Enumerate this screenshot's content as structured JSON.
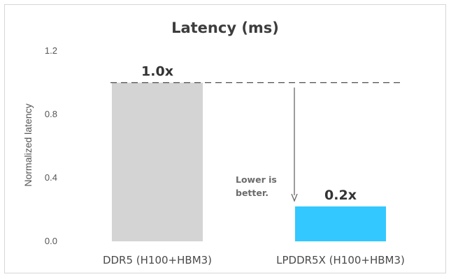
{
  "chart_data": {
    "type": "bar",
    "title": "Latency (ms)",
    "xlabel": "",
    "ylabel": "Normalized latency",
    "ylim": [
      0,
      1.2
    ],
    "yticks": [
      "0.0",
      "0.4",
      "0.8",
      "1.2"
    ],
    "ytick_values": [
      0,
      0.4,
      0.8,
      1.2
    ],
    "categories": [
      "DDR5 (H100+HBM3)",
      "LPDDR5X (H100+HBM3)"
    ],
    "values": [
      1.0,
      0.22
    ],
    "data_labels": [
      "1.0x",
      "0.2x"
    ],
    "colors": [
      "#d4d4d4",
      "#33c8ff"
    ],
    "reference_line": {
      "value": 1.0,
      "style": "dashed"
    },
    "annotation": {
      "lines": [
        "Lower is",
        "better."
      ]
    },
    "grid": false,
    "legend": "none"
  }
}
